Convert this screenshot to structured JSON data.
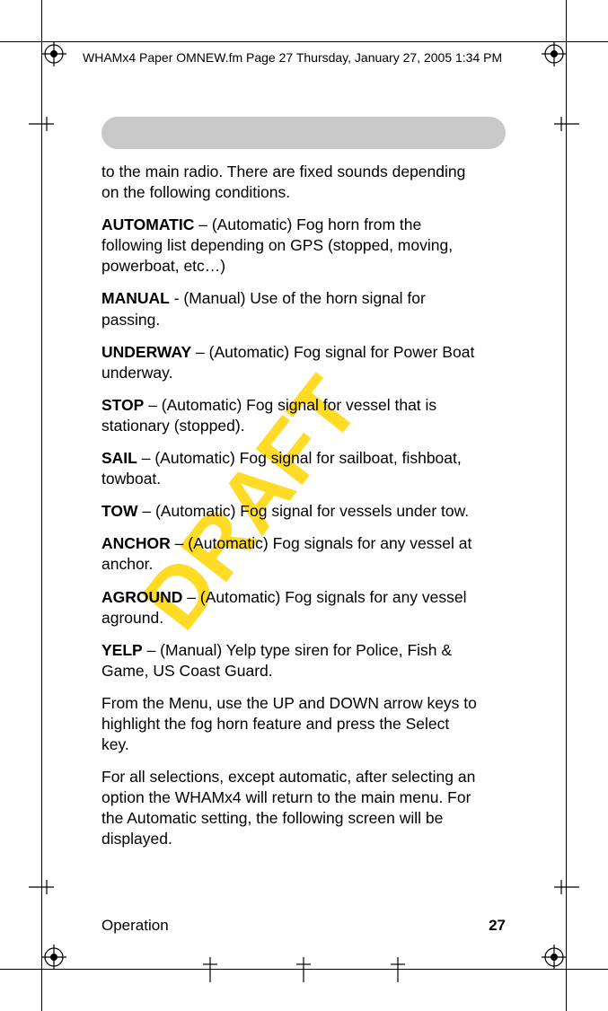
{
  "header": {
    "text": "WHAMx4 Paper OMNEW.fm  Page 27  Thursday, January 27, 2005  1:34 PM"
  },
  "pill_color": "#c8c8c8",
  "watermark": {
    "text": "DRAFT",
    "color": "#ffd500",
    "opacity": 0.85
  },
  "body": {
    "intro": "to the main radio. There are fixed sounds depending on the following conditions.",
    "items": [
      {
        "label": "AUTOMATIC",
        "sep": " – ",
        "desc": "(Automatic) Fog horn from the following list depending on GPS (stopped, moving, powerboat, etc…)"
      },
      {
        "label": "MANUAL",
        "sep": " - ",
        "desc": "(Manual) Use of the horn signal for passing."
      },
      {
        "label": "UNDERWAY",
        "sep": " – ",
        "desc": "(Automatic) Fog signal for Power Boat underway."
      },
      {
        "label": "STOP",
        "sep": " – ",
        "desc": "(Automatic) Fog signal for vessel that is stationary (stopped)."
      },
      {
        "label": "SAIL",
        "sep": " – ",
        "desc": "(Automatic) Fog signal for sailboat, fishboat, towboat."
      },
      {
        "label": "TOW",
        "sep": " – ",
        "desc": "(Automatic) Fog signal for vessels under tow."
      },
      {
        "label": "ANCHOR",
        "sep": " – ",
        "desc": "(Automatic) Fog signals for any vessel at anchor."
      },
      {
        "label": "AGROUND",
        "sep": " – ",
        "desc": "(Automatic) Fog signals for any vessel aground."
      },
      {
        "label": "YELP",
        "sep": " – ",
        "desc": "(Manual) Yelp type siren for Police, Fish & Game, US Coast Guard."
      }
    ],
    "post": [
      "From the Menu, use the UP and DOWN arrow keys to highlight the fog horn feature and press the Select key.",
      "For all selections, except automatic, after selecting an option the WHAMx4 will return to the main menu. For the Automatic setting, the following screen will be displayed."
    ]
  },
  "footer": {
    "section": "Operation",
    "page": "27"
  },
  "colors": {
    "text": "#000000",
    "background": "#ffffff",
    "crop": "#000000"
  }
}
